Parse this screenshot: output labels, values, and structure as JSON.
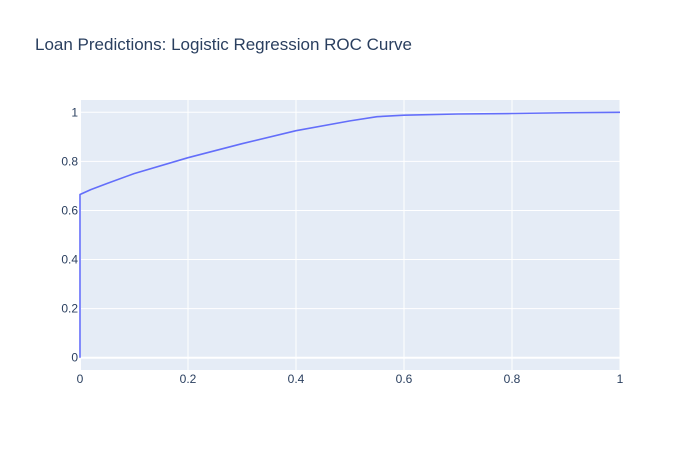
{
  "colors": {
    "plot_bg": "#e5ecf6",
    "grid": "#ffffff",
    "text": "#2a3f5f",
    "line": "#636efa"
  },
  "chart_data": {
    "type": "line",
    "title": "Loan Predictions: Logistic Regression ROC Curve",
    "xlabel": "",
    "ylabel": "",
    "xlim": [
      0,
      1
    ],
    "ylim": [
      -0.05,
      1.05
    ],
    "xticks": [
      0,
      0.2,
      0.4,
      0.6,
      0.8,
      1
    ],
    "yticks": [
      0,
      0.2,
      0.4,
      0.6,
      0.8,
      1
    ],
    "xtick_labels": [
      "0",
      "0.2",
      "0.4",
      "0.6",
      "0.8",
      "1"
    ],
    "ytick_labels": [
      "0",
      "0.2",
      "0.4",
      "0.6",
      "0.8",
      "1"
    ],
    "grid": true,
    "series": [
      {
        "x": [
          0,
          0,
          0.02,
          0.05,
          0.1,
          0.2,
          0.3,
          0.4,
          0.5,
          0.55,
          0.6,
          0.7,
          0.8,
          0.9,
          1.0
        ],
        "y": [
          0,
          0.665,
          0.685,
          0.71,
          0.75,
          0.815,
          0.872,
          0.925,
          0.965,
          0.982,
          0.988,
          0.993,
          0.995,
          0.998,
          1.0
        ]
      }
    ]
  }
}
